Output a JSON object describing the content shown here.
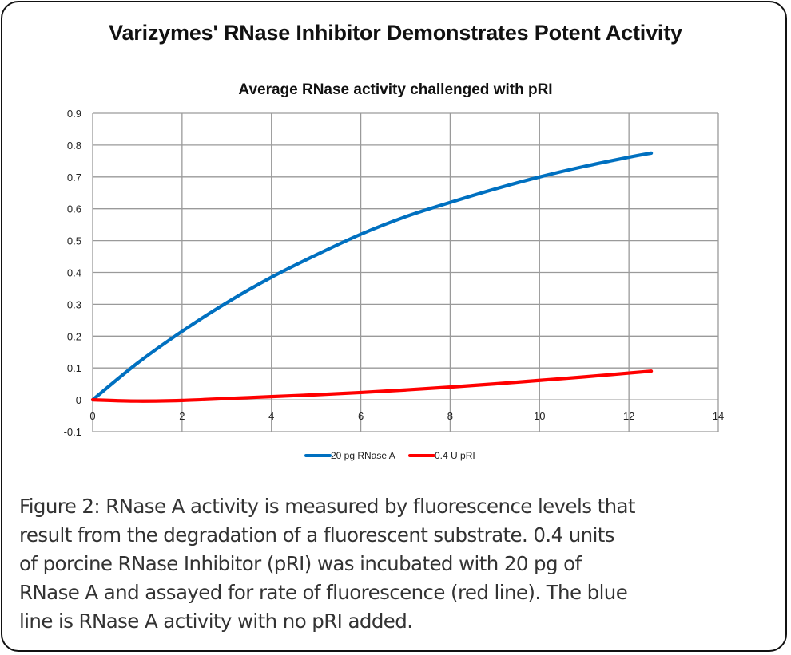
{
  "main_title": "Varizymes' RNase Inhibitor Demonstrates Potent Activity",
  "caption_lines": [
    "Figure 2:  RNase A activity is measured by fluorescence levels that",
    "result from the degradation of a fluorescent substrate.  0.4 units",
    "of porcine RNase Inhibitor (pRI) was incubated with 20 pg of",
    "RNase A and assayed for rate of fluorescence (red line).  The blue",
    "line is RNase A activity with no pRI added."
  ],
  "chart_data": {
    "type": "line",
    "title": "Average RNase activity challenged with pRI",
    "xlabel": "",
    "ylabel": "",
    "xlim": [
      0,
      14
    ],
    "ylim": [
      -0.1,
      0.9
    ],
    "grid": true,
    "legend_position": "bottom",
    "x_ticks": [
      "0",
      "2",
      "4",
      "6",
      "8",
      "10",
      "12",
      "14"
    ],
    "y_ticks": [
      "-0.1",
      "0",
      "0.1",
      "0.2",
      "0.3",
      "0.4",
      "0.5",
      "0.6",
      "0.7",
      "0.8",
      "0.9"
    ],
    "series": [
      {
        "name": "20 pg RNase A",
        "color": "#0070c0",
        "x": [
          0,
          1,
          2,
          3,
          4,
          5,
          6,
          7,
          8,
          9,
          10,
          11,
          12,
          12.5
        ],
        "y": [
          0,
          0.115,
          0.215,
          0.305,
          0.385,
          0.455,
          0.52,
          0.575,
          0.62,
          0.662,
          0.7,
          0.733,
          0.762,
          0.775
        ]
      },
      {
        "name": "0.4 U pRI",
        "color": "#ff0000",
        "x": [
          0,
          1,
          2,
          3,
          4,
          5,
          6,
          7,
          8,
          9,
          10,
          11,
          12,
          12.5
        ],
        "y": [
          0,
          -0.004,
          -0.002,
          0.004,
          0.01,
          0.016,
          0.023,
          0.031,
          0.04,
          0.05,
          0.061,
          0.072,
          0.084,
          0.09
        ]
      }
    ]
  }
}
